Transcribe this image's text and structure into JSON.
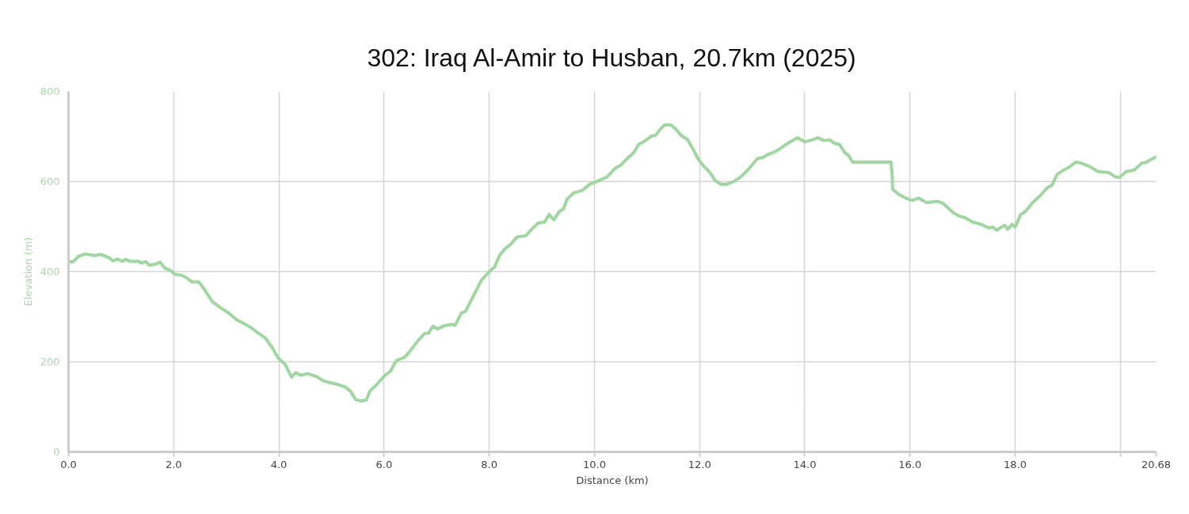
{
  "chart_data": {
    "type": "line",
    "title": "302: Iraq Al-Amir to Husban, 20.7km (2025)",
    "xlabel": "Distance (km)",
    "ylabel": "Elevation (m)",
    "x": [
      0,
      0.09,
      0.19,
      0.31,
      0.49,
      0.62,
      0.77,
      0.84,
      0.94,
      1.02,
      1.09,
      1.17,
      1.32,
      1.39,
      1.47,
      1.54,
      1.67,
      1.74,
      1.84,
      1.94,
      2.02,
      2.15,
      2.25,
      2.35,
      2.48,
      2.58,
      2.73,
      2.9,
      3.05,
      3.2,
      3.35,
      3.48,
      3.58,
      3.74,
      3.87,
      3.99,
      4.12,
      4.24,
      4.32,
      4.41,
      4.55,
      4.72,
      4.84,
      4.96,
      5.08,
      5.26,
      5.36,
      5.46,
      5.56,
      5.66,
      5.73,
      5.84,
      6.0,
      6.12,
      6.19,
      6.24,
      6.39,
      6.49,
      6.64,
      6.77,
      6.84,
      6.93,
      7.02,
      7.14,
      7.29,
      7.35,
      7.47,
      7.55,
      7.7,
      7.85,
      8.0,
      8.1,
      8.2,
      8.3,
      8.4,
      8.53,
      8.7,
      8.8,
      8.93,
      9.05,
      9.14,
      9.23,
      9.33,
      9.41,
      9.48,
      9.61,
      9.68,
      9.78,
      9.91,
      10.01,
      10.16,
      10.24,
      10.39,
      10.51,
      10.56,
      10.74,
      10.84,
      10.96,
      11.09,
      11.16,
      11.26,
      11.34,
      11.46,
      11.54,
      11.64,
      11.77,
      11.87,
      11.97,
      12.07,
      12.19,
      12.29,
      12.4,
      12.52,
      12.65,
      12.77,
      12.92,
      13.1,
      13.2,
      13.3,
      13.45,
      13.68,
      13.86,
      14.0,
      14.13,
      14.25,
      14.36,
      14.48,
      14.56,
      14.66,
      14.76,
      14.83,
      14.91,
      15.64,
      15.66,
      15.67,
      15.79,
      15.92,
      16.04,
      16.16,
      16.32,
      16.52,
      16.62,
      16.82,
      16.94,
      17.04,
      17.19,
      17.35,
      17.5,
      17.57,
      17.65,
      17.8,
      17.86,
      17.94,
      18.0,
      18.1,
      18.2,
      18.33,
      18.48,
      18.6,
      18.7,
      18.8,
      18.93,
      19.03,
      19.15,
      19.25,
      19.42,
      19.58,
      19.78,
      19.91,
      19.98,
      20.11,
      20.26,
      20.41,
      20.48,
      20.68
    ],
    "series": [
      {
        "color": "#a0d6a0",
        "values": [
          422,
          422,
          434,
          439,
          436,
          438,
          431,
          424,
          428,
          423,
          427,
          423,
          423,
          419,
          422,
          414,
          417,
          421,
          407,
          403,
          394,
          392,
          386,
          377,
          377,
          361,
          334,
          319,
          308,
          293,
          284,
          275,
          266,
          253,
          232,
          208,
          194,
          166,
          176,
          170,
          174,
          167,
          158,
          154,
          151,
          144,
          135,
          116,
          113,
          115,
          135,
          147,
          168,
          179,
          194,
          203,
          210,
          223,
          246,
          263,
          263,
          279,
          273,
          280,
          283,
          281,
          308,
          312,
          346,
          381,
          400,
          410,
          437,
          451,
          460,
          477,
          480,
          493,
          508,
          510,
          527,
          515,
          533,
          539,
          561,
          575,
          577,
          581,
          594,
          598,
          606,
          610,
          629,
          637,
          644,
          663,
          682,
          690,
          701,
          702,
          717,
          726,
          725,
          717,
          703,
          693,
          673,
          650,
          635,
          621,
          603,
          594,
          594,
          600,
          609,
          626,
          651,
          653,
          660,
          667,
          685,
          697,
          688,
          692,
          697,
          691,
          692,
          685,
          682,
          664,
          658,
          643,
          643,
          615,
          583,
          571,
          563,
          558,
          563,
          553,
          556,
          552,
          531,
          523,
          520,
          510,
          505,
          497,
          499,
          492,
          503,
          494,
          505,
          499,
          526,
          534,
          553,
          569,
          585,
          592,
          616,
          626,
          632,
          643,
          641,
          633,
          622,
          620,
          610,
          609,
          622,
          625,
          641,
          642,
          655
        ]
      }
    ],
    "xlim": [
      0,
      20.68
    ],
    "ylim": [
      0,
      800
    ],
    "xticks": [
      {
        "value": 0,
        "label": "0.0"
      },
      {
        "value": 2,
        "label": "2.0"
      },
      {
        "value": 4,
        "label": "4.0"
      },
      {
        "value": 6,
        "label": "6.0"
      },
      {
        "value": 8,
        "label": "8.0"
      },
      {
        "value": 10,
        "label": "10.0"
      },
      {
        "value": 12,
        "label": "12.0"
      },
      {
        "value": 14,
        "label": "14.0"
      },
      {
        "value": 16,
        "label": "16.0"
      },
      {
        "value": 18,
        "label": "18.0"
      },
      {
        "value": 20,
        "label": null
      },
      20.68
    ],
    "yticks": [
      0,
      200,
      400,
      600,
      800
    ],
    "grid": true,
    "line_style": "solid"
  }
}
